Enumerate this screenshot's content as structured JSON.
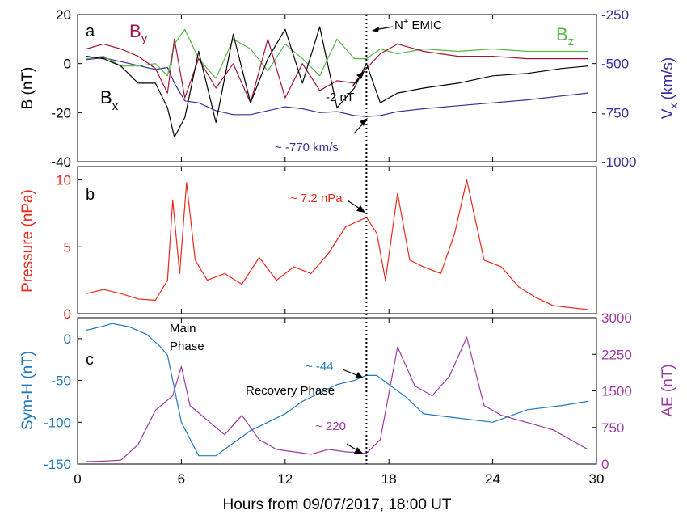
{
  "figure": {
    "xlabel": "Hours from 09/07/2017, 18:00 UT",
    "x_ticks": [
      "0",
      "6",
      "12",
      "18",
      "24",
      "30"
    ],
    "vline_hours": 16.7,
    "colors": {
      "bx": "#000000",
      "by": "#a0163a",
      "bz": "#58b547",
      "vx": "#3a2d96",
      "pressure": "#e8291c",
      "symh": "#1f78bd",
      "ae": "#9b3aa3"
    }
  },
  "chart_data": [
    {
      "panel": "a",
      "type": "line",
      "x_range": [
        0,
        30
      ],
      "ylabel_left": "B (nT)",
      "ylim_left": [
        -40,
        20
      ],
      "yticks_left": [
        "20",
        "0",
        "-20",
        "-40"
      ],
      "ylabel_right": "V",
      "ylabel_right_sub": "x",
      "ylabel_right_unit": "(km/s)",
      "ylim_right": [
        -1000,
        -250
      ],
      "yticks_right": [
        "-250",
        "-500",
        "-750",
        "-1000"
      ],
      "series": [
        {
          "key": "vx",
          "name": "V",
          "axis": "right",
          "x": [
            0.5,
            1.5,
            2.5,
            3.5,
            4.5,
            5.2,
            5.6,
            6.2,
            7,
            8,
            9,
            10,
            11,
            12,
            13,
            14,
            15,
            16,
            16.7,
            17.5,
            18.5,
            20,
            22,
            24,
            26,
            28,
            29.5
          ],
          "y": [
            -480,
            -470,
            -490,
            -510,
            -530,
            -520,
            -600,
            -690,
            -700,
            -740,
            -760,
            -760,
            -740,
            -720,
            -730,
            -750,
            -745,
            -765,
            -770,
            -765,
            -745,
            -730,
            -715,
            -700,
            -685,
            -665,
            -650
          ]
        },
        {
          "key": "bz",
          "name": "B",
          "sub": "z",
          "axis": "left",
          "x": [
            0.5,
            1.5,
            2.5,
            3.5,
            4.5,
            5.2,
            5.6,
            6.2,
            7,
            8,
            9,
            10,
            11,
            12,
            13,
            14,
            15,
            16,
            16.7,
            17.5,
            18.5,
            20,
            22,
            24,
            26,
            28,
            29.5
          ],
          "y": [
            2,
            3,
            -1,
            -1,
            0,
            -5,
            8,
            14,
            2,
            -6,
            10,
            6,
            -3,
            8,
            2,
            -5,
            10,
            2,
            2,
            6,
            4,
            6,
            5,
            6,
            5,
            5,
            5
          ]
        },
        {
          "key": "by",
          "name": "B",
          "sub": "y",
          "axis": "left",
          "x": [
            0.5,
            1.5,
            2.5,
            3.5,
            4.5,
            5.2,
            5.6,
            6.2,
            7,
            8,
            9,
            10,
            11,
            12,
            13,
            14,
            15,
            16,
            16.7,
            17.5,
            18.5,
            20,
            22,
            24,
            26,
            28,
            29.5
          ],
          "y": [
            6,
            8,
            6,
            3,
            -2,
            -12,
            10,
            -14,
            2,
            -10,
            0,
            -16,
            10,
            -14,
            0,
            -11,
            -7,
            -8,
            -2,
            4,
            8,
            5,
            3,
            3,
            2,
            2,
            2
          ]
        },
        {
          "key": "bx",
          "name": "B",
          "sub": "x",
          "axis": "left",
          "x": [
            0.5,
            1.5,
            2.5,
            3.5,
            4.5,
            5.2,
            5.6,
            6.2,
            7,
            8,
            9,
            10,
            11,
            12,
            13,
            14,
            15,
            16,
            16.7,
            17.5,
            18.5,
            20,
            22,
            24,
            26,
            28,
            29.5
          ],
          "y": [
            3,
            2,
            -1,
            -8,
            -8,
            -18,
            -30,
            -22,
            5,
            -24,
            12,
            -16,
            2,
            14,
            -8,
            15,
            -18,
            -10,
            0,
            -16,
            -12,
            -10,
            -8,
            -5,
            -4,
            -2,
            -1
          ]
        }
      ],
      "annotations": [
        {
          "id": "emic",
          "text": "N",
          "sup": "+",
          "rest": " EMIC"
        },
        {
          "id": "b2",
          "text": "-2 nT"
        },
        {
          "id": "v770",
          "text": "~ -770 km/s"
        }
      ]
    },
    {
      "panel": "b",
      "type": "line",
      "x_range": [
        0,
        30
      ],
      "ylabel_left": "Pressure (nPa)",
      "ylim_left": [
        0,
        11
      ],
      "yticks_left": [
        "10",
        "5",
        "0"
      ],
      "series": [
        {
          "key": "pressure",
          "axis": "left",
          "x": [
            0.5,
            1.5,
            2.5,
            3.5,
            4.5,
            5.2,
            5.5,
            5.9,
            6.3,
            6.8,
            7.5,
            8.5,
            9.5,
            10.5,
            11.5,
            12.5,
            13.5,
            14.5,
            15.5,
            16.7,
            17.3,
            17.8,
            18.5,
            19.2,
            20,
            21,
            21.8,
            22.5,
            23.5,
            24.5,
            25.5,
            26.5,
            27.5,
            29.5
          ],
          "y": [
            1.5,
            1.8,
            1.5,
            1.1,
            1.0,
            2.5,
            8.5,
            3.0,
            9.8,
            4.0,
            2.5,
            3.0,
            2.2,
            4.2,
            2.5,
            3.5,
            3.0,
            4.5,
            6.5,
            7.2,
            6.0,
            2.5,
            9.0,
            4.0,
            3.5,
            3.0,
            6.0,
            10.0,
            4.0,
            3.5,
            2.0,
            1.2,
            0.6,
            0.3
          ]
        }
      ],
      "annotations": [
        {
          "id": "p72",
          "text": "~ 7.2 nPa"
        }
      ]
    },
    {
      "panel": "c",
      "type": "line",
      "x_range": [
        0,
        30
      ],
      "ylabel_left": "Sym-H (nT)",
      "ylim_left": [
        -150,
        25
      ],
      "yticks_left": [
        "0",
        "-50",
        "-100",
        "-150"
      ],
      "ylabel_right": "AE (nT)",
      "ylim_right": [
        0,
        3000
      ],
      "yticks_right": [
        "3000",
        "2250",
        "1500",
        "750",
        "0"
      ],
      "series": [
        {
          "key": "ae",
          "name": "AE",
          "axis": "right",
          "x": [
            0.5,
            1.5,
            2.5,
            3.5,
            4.5,
            5.5,
            6,
            6.5,
            7.5,
            8.5,
            9.5,
            10.5,
            11.5,
            12.5,
            13.5,
            14.5,
            15.5,
            16.7,
            17.5,
            18.5,
            19.5,
            20.5,
            21.5,
            22.5,
            23.5,
            24.5,
            25.5,
            26.5,
            27.5,
            29.5
          ],
          "y": [
            50,
            60,
            80,
            400,
            1100,
            1400,
            2000,
            1200,
            900,
            600,
            1000,
            500,
            300,
            250,
            200,
            300,
            250,
            220,
            500,
            2400,
            1600,
            1400,
            1800,
            2600,
            1200,
            1000,
            900,
            800,
            700,
            300
          ]
        },
        {
          "key": "symh",
          "name": "Sym-H",
          "axis": "left",
          "x": [
            0.5,
            1.5,
            2,
            3,
            4,
            4.8,
            5.2,
            6,
            7,
            8,
            9,
            10,
            11,
            12,
            13,
            14,
            15,
            16,
            16.7,
            17.3,
            18,
            19,
            20,
            22,
            24,
            26,
            28,
            29.5
          ],
          "y": [
            10,
            15,
            18,
            14,
            5,
            -10,
            -20,
            -100,
            -140,
            -140,
            -125,
            -110,
            -100,
            -90,
            -75,
            -65,
            -55,
            -50,
            -44,
            -44,
            -55,
            -70,
            -90,
            -95,
            -100,
            -85,
            -80,
            -75
          ]
        }
      ],
      "annotations": [
        {
          "id": "main",
          "text": "Main",
          "text2": "Phase"
        },
        {
          "id": "recovery",
          "text": "Recovery Phase"
        },
        {
          "id": "s44",
          "text": "~ -44"
        },
        {
          "id": "ae220",
          "text": "~ 220"
        }
      ]
    }
  ]
}
